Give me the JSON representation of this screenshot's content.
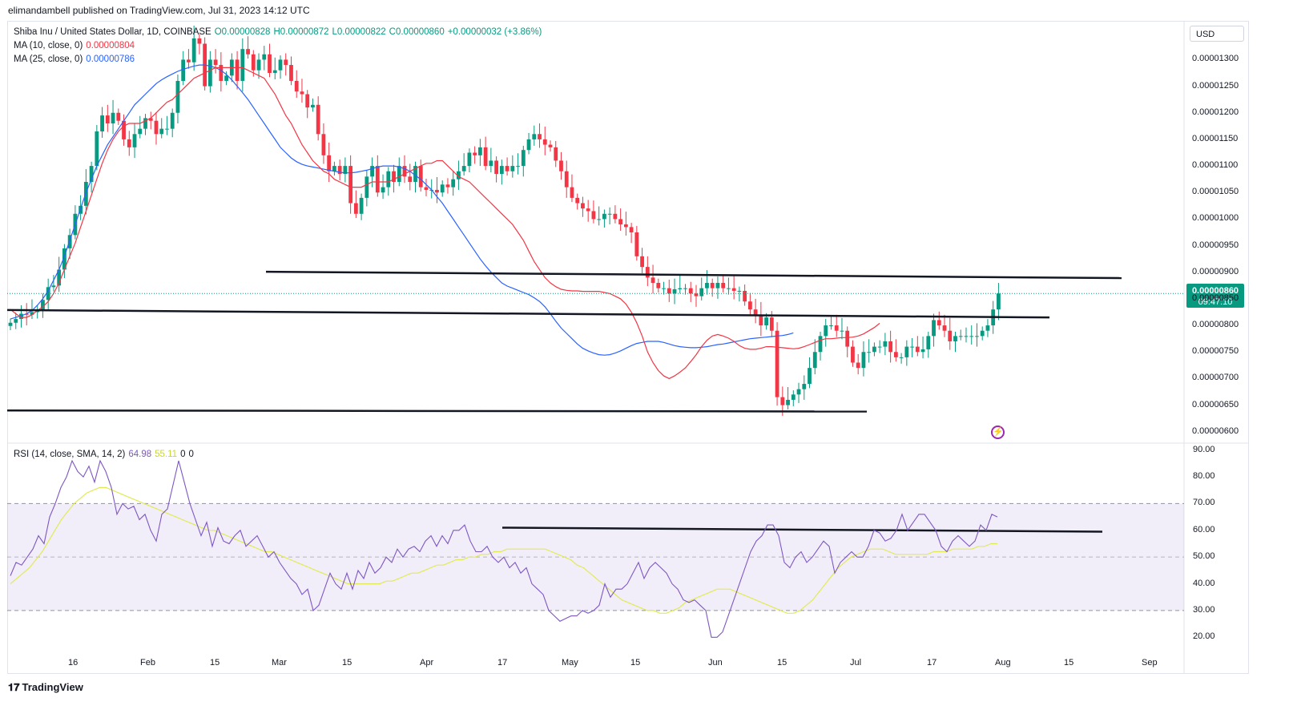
{
  "header": {
    "published_by": "elimandambell published on TradingView.com, Jul 31, 2023 14:12 UTC"
  },
  "legend": {
    "symbol": "Shiba Inu / United States Dollar, 1D, COINBASE",
    "open": "O0.00000828",
    "high": "H0.00000872",
    "low": "L0.00000822",
    "close": "C0.00000860",
    "change": "+0.00000032 (+3.86%)",
    "ma10_label": "MA (10, close, 0)",
    "ma10_value": "0.00000804",
    "ma25_label": "MA (25, close, 0)",
    "ma25_value": "0.00000786",
    "rsi_label": "RSI (14, close, SMA, 14, 2)",
    "rsi_value": "64.98",
    "rsi_sma_value": "55.11",
    "rsi_extra1": "0",
    "rsi_extra2": "0"
  },
  "currency_button": "USD",
  "last_price": {
    "value": "0.00000860",
    "countdown": "09:47:10"
  },
  "colors": {
    "up": "#089981",
    "down": "#f23645",
    "ma10": "#f23645",
    "ma25": "#2962ff",
    "rsi": "#7e57c2",
    "rsi_sma": "#e1ea55"
  },
  "footer": {
    "brand": "TradingView"
  },
  "chart_data": [
    {
      "type": "candlestick",
      "x_ticks": [
        "16",
        "Feb",
        "15",
        "Mar",
        "15",
        "Apr",
        "17",
        "May",
        "15",
        "Jun",
        "15",
        "Jul",
        "17",
        "Aug",
        "15",
        "Sep"
      ],
      "y_ticks": [
        "0.00001300",
        "0.00001250",
        "0.00001200",
        "0.00001150",
        "0.00001100",
        "0.00001050",
        "0.00001000",
        "0.00000950",
        "0.00000900",
        "0.00000850",
        "0.00000800",
        "0.00000750",
        "0.00000700",
        "0.00000650",
        "0.00000600"
      ],
      "ylim": [
        5.8e-06,
        1.37e-05
      ],
      "closes_e8": [
        805,
        812,
        822,
        820,
        825,
        830,
        848,
        872,
        875,
        905,
        945,
        970,
        1010,
        1025,
        1070,
        1100,
        1165,
        1195,
        1180,
        1200,
        1185,
        1150,
        1135,
        1160,
        1170,
        1190,
        1185,
        1160,
        1170,
        1170,
        1200,
        1260,
        1300,
        1295,
        1340,
        1330,
        1250,
        1300,
        1290,
        1260,
        1270,
        1300,
        1260,
        1320,
        1310,
        1280,
        1300,
        1310,
        1275,
        1280,
        1300,
        1290,
        1260,
        1240,
        1235,
        1210,
        1215,
        1160,
        1120,
        1090,
        1100,
        1085,
        1100,
        1030,
        1010,
        1040,
        1080,
        1100,
        1050,
        1060,
        1090,
        1070,
        1100,
        1080,
        1070,
        1100,
        1060,
        1055,
        1055,
        1050,
        1065,
        1060,
        1075,
        1090,
        1100,
        1125,
        1120,
        1135,
        1100,
        1110,
        1085,
        1100,
        1090,
        1100,
        1100,
        1130,
        1150,
        1160,
        1150,
        1140,
        1135,
        1110,
        1090,
        1060,
        1040,
        1030,
        1020,
        1015,
        1000,
        1000,
        1010,
        1010,
        1000,
        990,
        985,
        975,
        930,
        910,
        890,
        880,
        870,
        870,
        860,
        868,
        870,
        870,
        860,
        855,
        870,
        880,
        870,
        880,
        870,
        870,
        865,
        865,
        845,
        830,
        820,
        800,
        815,
        790,
        665,
        650,
        660,
        670,
        680,
        690,
        720,
        750,
        780,
        800,
        800,
        790,
        790,
        760,
        730,
        720,
        750,
        750,
        760,
        760,
        770,
        750,
        740,
        740,
        760,
        760,
        750,
        755,
        780,
        810,
        800,
        790,
        770,
        780,
        780,
        780,
        780,
        780,
        790,
        800,
        830,
        860
      ],
      "ma10_e8": [
        830,
        822,
        815,
        815,
        820,
        828,
        835,
        845,
        860,
        880,
        905,
        930,
        955,
        985,
        1015,
        1045,
        1075,
        1105,
        1130,
        1150,
        1165,
        1175,
        1180,
        1180,
        1180,
        1185,
        1190,
        1200,
        1210,
        1220,
        1225,
        1235,
        1245,
        1255,
        1265,
        1270,
        1275,
        1280,
        1285,
        1285,
        1285,
        1285,
        1285,
        1285,
        1280,
        1275,
        1270,
        1265,
        1250,
        1235,
        1215,
        1195,
        1180,
        1160,
        1140,
        1125,
        1110,
        1100,
        1090,
        1085,
        1075,
        1070,
        1065,
        1060,
        1060,
        1060,
        1065,
        1070,
        1070,
        1070,
        1070,
        1075,
        1080,
        1085,
        1090,
        1095,
        1100,
        1105,
        1105,
        1110,
        1110,
        1100,
        1090,
        1080,
        1075,
        1070,
        1060,
        1050,
        1040,
        1030,
        1020,
        1010,
        1000,
        990,
        975,
        960,
        940,
        920,
        905,
        890,
        880,
        873,
        868,
        866,
        865,
        865,
        864,
        864,
        864,
        864,
        862,
        860,
        855,
        850,
        840,
        825,
        805,
        780,
        750,
        730,
        715,
        705,
        700,
        705,
        712,
        720,
        732,
        745,
        760,
        772,
        780,
        783,
        780,
        776,
        770,
        762,
        757,
        755,
        755,
        757,
        760,
        760,
        759,
        758,
        757,
        756,
        757,
        760,
        764,
        768,
        772,
        775,
        775,
        776,
        777,
        777,
        778,
        780,
        784,
        790,
        796,
        804
      ],
      "ma25_e8": [
        812,
        815,
        818,
        822,
        828,
        838,
        850,
        865,
        885,
        905,
        930,
        960,
        990,
        1020,
        1050,
        1075,
        1100,
        1120,
        1140,
        1155,
        1170,
        1185,
        1200,
        1215,
        1225,
        1235,
        1245,
        1255,
        1262,
        1268,
        1273,
        1278,
        1282,
        1285,
        1288,
        1290,
        1290,
        1288,
        1285,
        1280,
        1272,
        1262,
        1250,
        1238,
        1225,
        1210,
        1195,
        1180,
        1165,
        1150,
        1135,
        1125,
        1115,
        1108,
        1103,
        1100,
        1098,
        1096,
        1094,
        1092,
        1090,
        1088,
        1087,
        1087,
        1088,
        1090,
        1092,
        1095,
        1098,
        1100,
        1100,
        1100,
        1098,
        1095,
        1090,
        1082,
        1075,
        1065,
        1055,
        1042,
        1030,
        1015,
        1000,
        985,
        970,
        955,
        940,
        925,
        912,
        900,
        890,
        880,
        874,
        870,
        866,
        862,
        858,
        852,
        845,
        835,
        822,
        808,
        795,
        785,
        775,
        765,
        757,
        752,
        748,
        745,
        744,
        745,
        748,
        752,
        757,
        762,
        766,
        768,
        770,
        770,
        770,
        768,
        765,
        762,
        760,
        759,
        758,
        758,
        759,
        760,
        762,
        764,
        765,
        767,
        769,
        771,
        773,
        775,
        776,
        777,
        778,
        779,
        780,
        781,
        783,
        786
      ],
      "horizontal_lines": [
        {
          "from": [
            0,
            829
          ],
          "to": [
            1.0,
            815
          ]
        },
        {
          "from": [
            0.2,
            901
          ],
          "to": [
            1.0,
            889
          ]
        },
        {
          "from": [
            0,
            640
          ],
          "to": [
            0.78,
            638
          ]
        }
      ]
    },
    {
      "type": "line",
      "title": "RSI (14, close, SMA, 14, 2)",
      "y_ticks": [
        "90.00",
        "80.00",
        "70.00",
        "60.00",
        "50.00",
        "40.00",
        "30.00",
        "20.00"
      ],
      "ylim": [
        15,
        92
      ],
      "bands": [
        30,
        50,
        70
      ],
      "series": [
        {
          "name": "RSI",
          "values": [
            43,
            48,
            47,
            50,
            53,
            58,
            55,
            65,
            70,
            76,
            80,
            86,
            82,
            80,
            84,
            78,
            86,
            82,
            76,
            66,
            70,
            68,
            69,
            64,
            66,
            60,
            56,
            66,
            68,
            77,
            86,
            78,
            70,
            64,
            58,
            63,
            54,
            61,
            56,
            55,
            58,
            60,
            54,
            56,
            58,
            54,
            50,
            52,
            48,
            45,
            42,
            40,
            36,
            38,
            30,
            32,
            38,
            44,
            40,
            38,
            44,
            38,
            45,
            42,
            48,
            44,
            46,
            50,
            48,
            53,
            50,
            53,
            54,
            52,
            56,
            58,
            54,
            58,
            55,
            60,
            60,
            62,
            56,
            52,
            52,
            54,
            50,
            48,
            50,
            46,
            48,
            44,
            46,
            40,
            38,
            36,
            30,
            28,
            26,
            27,
            28,
            28,
            30,
            29,
            30,
            32,
            40,
            35,
            38,
            38,
            40,
            44,
            48,
            42,
            46,
            48,
            46,
            44,
            40,
            38,
            34,
            33,
            34,
            32,
            30,
            20,
            20,
            22,
            28,
            34,
            40,
            46,
            52,
            56,
            58,
            62,
            62,
            58,
            48,
            46,
            50,
            52,
            48,
            50,
            53,
            56,
            54,
            44,
            48,
            50,
            52,
            50,
            50,
            54,
            60,
            59,
            56,
            57,
            60,
            66,
            60,
            63,
            66,
            66,
            63,
            60,
            54,
            52,
            56,
            58,
            56,
            54,
            56,
            62,
            60,
            66,
            65
          ]
        },
        {
          "name": "SMA",
          "values": [
            40,
            42,
            44,
            46,
            49,
            52,
            56,
            60,
            64,
            67,
            70,
            72,
            74,
            75,
            76,
            76,
            75,
            74,
            73,
            72,
            71,
            70,
            69,
            68,
            67,
            66,
            65,
            64,
            63,
            62,
            61,
            60,
            60,
            59,
            58,
            57,
            56,
            55,
            54,
            53,
            52,
            52,
            51,
            50,
            49,
            48,
            47,
            46,
            45,
            44,
            43,
            42,
            41,
            40,
            40,
            40,
            40,
            40,
            40,
            41,
            41,
            42,
            43,
            44,
            44,
            45,
            46,
            47,
            47,
            48,
            49,
            49,
            50,
            50,
            51,
            51,
            52,
            52,
            53,
            53,
            53,
            53,
            53,
            53,
            53,
            52,
            51,
            50,
            49,
            47,
            46,
            44,
            42,
            40,
            38,
            36,
            34,
            33,
            32,
            31,
            30,
            30,
            29,
            29,
            30,
            31,
            33,
            34,
            35,
            36,
            37,
            38,
            38,
            38,
            37,
            36,
            35,
            34,
            33,
            32,
            31,
            30,
            29,
            29,
            30,
            32,
            34,
            37,
            40,
            43,
            46,
            48,
            50,
            51,
            52,
            53,
            53,
            53,
            52,
            51,
            51,
            51,
            51,
            51,
            51,
            52,
            52,
            52,
            53,
            53,
            53,
            53,
            54,
            54,
            55,
            55
          ]
        }
      ]
    }
  ]
}
